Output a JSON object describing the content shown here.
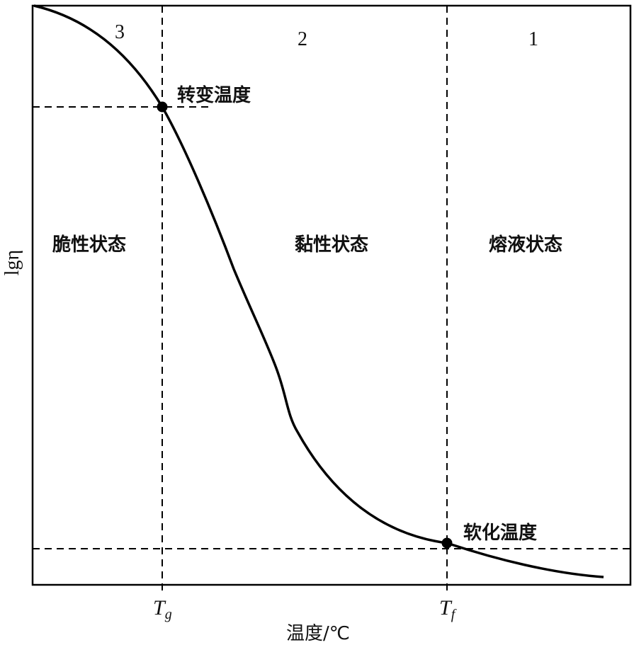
{
  "regions": [
    {
      "id": "3",
      "number": "3",
      "state": "脆性状态"
    },
    {
      "id": "2",
      "number": "2",
      "state": "黏性状态"
    },
    {
      "id": "1",
      "number": "1",
      "state": "熔液状态"
    }
  ],
  "points": {
    "transition": {
      "label": "转变温度"
    },
    "softening": {
      "label": "软化温度"
    }
  },
  "ticks": {
    "tg": {
      "base": "T",
      "sub": "g"
    },
    "tf": {
      "base": "T",
      "sub": "f"
    }
  },
  "axes": {
    "x_label": "温度/℃",
    "y_label": "lgη"
  },
  "colors": {
    "line": "#000000",
    "background": "#ffffff"
  }
}
